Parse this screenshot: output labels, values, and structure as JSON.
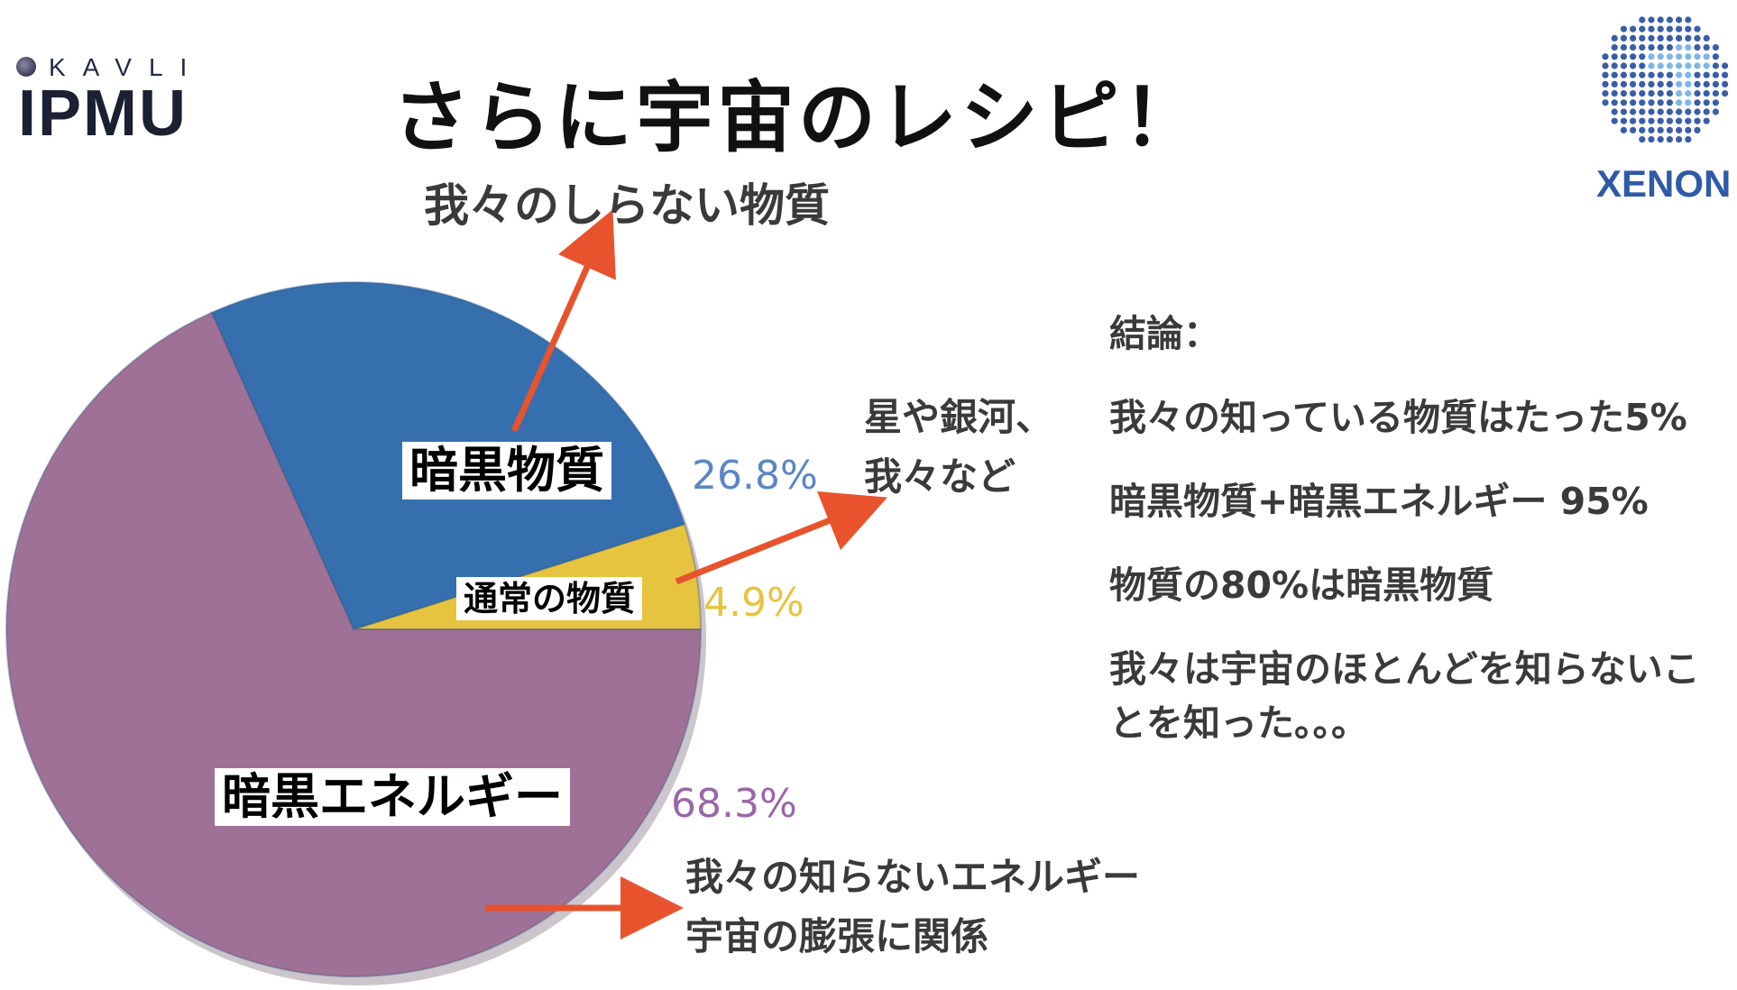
{
  "title": "さらに宇宙のレシピ！",
  "logos": {
    "left": {
      "small": "KAVLI",
      "big": "IPMU"
    },
    "right": {
      "word": "XENON"
    }
  },
  "annotations": {
    "dark_matter_note": "我々のしらない物質",
    "ordinary_note": [
      "星や銀河、",
      "我々など"
    ],
    "dark_energy_note": [
      "我々の知らないエネルギー",
      "宇宙の膨張に関係"
    ]
  },
  "conclusion": {
    "heading": "結論：",
    "points": [
      "我々の知っている物質はたった5%",
      "暗黒物質+暗黒エネルギー 95%",
      "物質の80%は暗黒物質",
      "我々は宇宙のほとんどを知らないことを知った。。。"
    ]
  },
  "chart_data": {
    "type": "pie",
    "slices": [
      {
        "label": "暗黒物質",
        "value": 26.8,
        "value_label": "26.8%",
        "color": "#366fae",
        "label_color": "#5b86c5"
      },
      {
        "label": "通常の物質",
        "value": 4.9,
        "value_label": "4.9%",
        "color": "#e7c43f",
        "label_color": "#e7c43f"
      },
      {
        "label": "暗黒エネルギー",
        "value": 68.3,
        "value_label": "68.3%",
        "color": "#a07196",
        "label_color": "#9a66a8"
      }
    ],
    "start_angle_deg": 0,
    "direction": "counterclockwise"
  },
  "colors": {
    "arrow": "#e8532d",
    "text_dark": "#3a3a3a",
    "xenon_blue": "#2e5aa8"
  }
}
